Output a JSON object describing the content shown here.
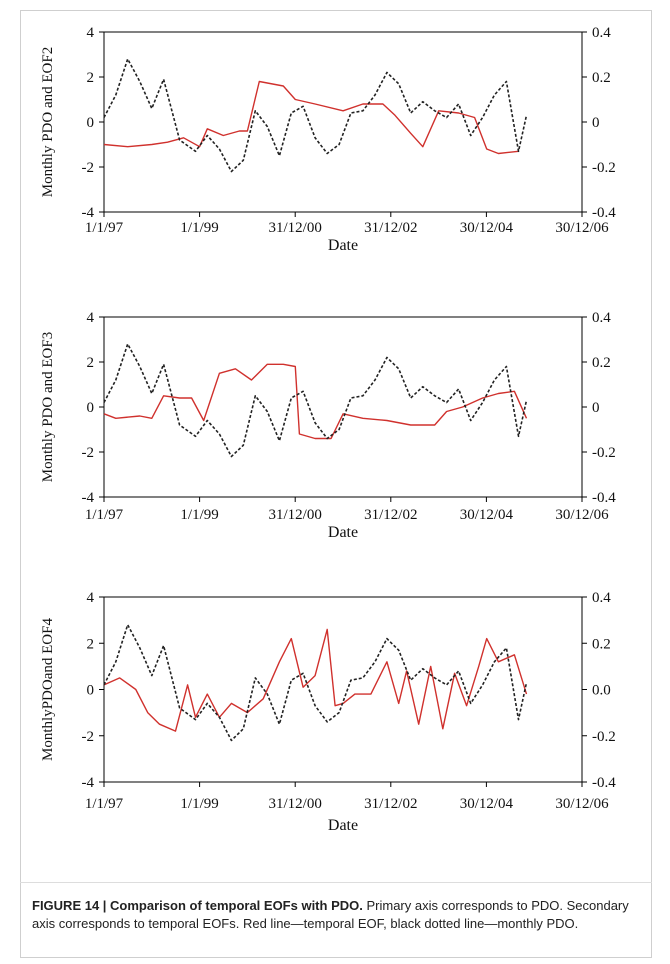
{
  "figure": {
    "caption_title": "FIGURE 14 | Comparison of temporal EOFs with PDO.",
    "caption_text": "Primary axis corresponds to PDO. Secondary axis corresponds to temporal EOFs. Red line—temporal EOF, black dotted line—monthly PDO.",
    "colors": {
      "eof": "#d0312d",
      "pdo": "#222222",
      "axis": "#000000"
    }
  },
  "chart_data": [
    {
      "type": "line",
      "ylabel": "Monthly PDO and EOF2",
      "xlabel": "Date",
      "xlim": [
        "1997-01-01",
        "2006-12-30"
      ],
      "xticks": [
        "1/1/97",
        "1/1/99",
        "31/12/00",
        "31/12/02",
        "30/12/04",
        "30/12/06"
      ],
      "ylim_left": [
        -4,
        4
      ],
      "yticks_left": [
        "4",
        "2",
        "0",
        "-2",
        "-4"
      ],
      "ylim_right": [
        -0.4,
        0.4
      ],
      "yticks_right": [
        "0.4",
        "0.2",
        "0",
        "-0.2",
        "-0.4"
      ],
      "series": [
        {
          "axis": "right",
          "x": [
            "1997-01-01",
            "1997-07-01",
            "1998-01-01",
            "1998-05-01",
            "1998-09-01",
            "1999-01-01",
            "1999-03-01",
            "1999-07-01",
            "1999-11-01",
            "2000-01-01",
            "2000-04-01",
            "2000-10-01",
            "2001-01-01",
            "2001-06-01",
            "2002-01-01",
            "2002-06-01",
            "2002-11-01",
            "2003-02-01",
            "2003-06-01",
            "2003-09-01",
            "2004-01-01",
            "2004-06-01",
            "2004-10-01",
            "2005-01-01",
            "2005-04-01",
            "2005-09-01"
          ],
          "y": [
            -0.1,
            -0.11,
            -0.1,
            -0.09,
            -0.07,
            -0.11,
            -0.03,
            -0.06,
            -0.04,
            -0.04,
            0.18,
            0.16,
            0.1,
            0.08,
            0.05,
            0.08,
            0.08,
            0.03,
            -0.05,
            -0.11,
            0.05,
            0.04,
            0.02,
            -0.12,
            -0.14,
            -0.13
          ]
        },
        {
          "axis": "left",
          "x": [
            "1997-01-01",
            "1997-04-01",
            "1997-07-01",
            "1997-10-01",
            "1998-01-01",
            "1998-04-01",
            "1998-08-01",
            "1998-12-01",
            "1999-03-01",
            "1999-06-01",
            "1999-09-01",
            "1999-12-01",
            "2000-03-01",
            "2000-06-01",
            "2000-09-01",
            "2000-12-01",
            "2001-03-01",
            "2001-06-01",
            "2001-09-01",
            "2001-12-01",
            "2002-03-01",
            "2002-06-01",
            "2002-09-01",
            "2002-12-01",
            "2003-03-01",
            "2003-06-01",
            "2003-09-01",
            "2003-12-01",
            "2004-03-01",
            "2004-06-01",
            "2004-09-01",
            "2004-12-01",
            "2005-03-01",
            "2005-06-01",
            "2005-09-01",
            "2005-11-01"
          ],
          "y": [
            0.2,
            1.2,
            2.8,
            1.8,
            0.6,
            1.9,
            -0.8,
            -1.3,
            -0.6,
            -1.2,
            -2.2,
            -1.7,
            0.5,
            -0.2,
            -1.5,
            0.4,
            0.7,
            -0.7,
            -1.4,
            -1.0,
            0.4,
            0.5,
            1.2,
            2.2,
            1.7,
            0.4,
            0.9,
            0.5,
            0.2,
            0.8,
            -0.6,
            0.2,
            1.2,
            1.8,
            -1.3,
            0.3
          ]
        }
      ]
    },
    {
      "type": "line",
      "ylabel": "Monthly PDO and EOF3",
      "xlabel": "Date",
      "xlim": [
        "1997-01-01",
        "2006-12-30"
      ],
      "xticks": [
        "1/1/97",
        "1/1/99",
        "31/12/00",
        "31/12/02",
        "30/12/04",
        "30/12/06"
      ],
      "ylim_left": [
        -4,
        4
      ],
      "yticks_left": [
        "4",
        "2",
        "0",
        "-2",
        "-4"
      ],
      "ylim_right": [
        -0.4,
        0.4
      ],
      "yticks_right": [
        "0.4",
        "0.2",
        "0",
        "-0.2",
        "-0.4"
      ],
      "series": [
        {
          "axis": "right",
          "x": [
            "1997-01-01",
            "1997-04-01",
            "1997-10-01",
            "1998-01-01",
            "1998-04-01",
            "1998-08-01",
            "1998-11-01",
            "1999-02-01",
            "1999-06-01",
            "1999-10-01",
            "2000-02-01",
            "2000-06-01",
            "2000-10-01",
            "2001-01-01",
            "2001-02-01",
            "2001-06-01",
            "2001-10-01",
            "2002-01-01",
            "2002-06-01",
            "2002-12-01",
            "2003-06-01",
            "2003-12-01",
            "2004-03-01",
            "2004-07-01",
            "2004-12-01",
            "2005-04-01",
            "2005-08-01",
            "2005-11-01"
          ],
          "y": [
            -0.03,
            -0.05,
            -0.04,
            -0.05,
            0.05,
            0.04,
            0.04,
            -0.06,
            0.15,
            0.17,
            0.12,
            0.19,
            0.19,
            0.18,
            -0.12,
            -0.14,
            -0.14,
            -0.03,
            -0.05,
            -0.06,
            -0.08,
            -0.08,
            -0.02,
            0.0,
            0.04,
            0.06,
            0.07,
            -0.05
          ]
        },
        {
          "axis": "left",
          "x": [
            "1997-01-01",
            "1997-04-01",
            "1997-07-01",
            "1997-10-01",
            "1998-01-01",
            "1998-04-01",
            "1998-08-01",
            "1998-12-01",
            "1999-03-01",
            "1999-06-01",
            "1999-09-01",
            "1999-12-01",
            "2000-03-01",
            "2000-06-01",
            "2000-09-01",
            "2000-12-01",
            "2001-03-01",
            "2001-06-01",
            "2001-09-01",
            "2001-12-01",
            "2002-03-01",
            "2002-06-01",
            "2002-09-01",
            "2002-12-01",
            "2003-03-01",
            "2003-06-01",
            "2003-09-01",
            "2003-12-01",
            "2004-03-01",
            "2004-06-01",
            "2004-09-01",
            "2004-12-01",
            "2005-03-01",
            "2005-06-01",
            "2005-09-01",
            "2005-11-01"
          ],
          "y": [
            0.2,
            1.2,
            2.8,
            1.8,
            0.6,
            1.9,
            -0.8,
            -1.3,
            -0.6,
            -1.2,
            -2.2,
            -1.7,
            0.5,
            -0.2,
            -1.5,
            0.4,
            0.7,
            -0.7,
            -1.4,
            -1.0,
            0.4,
            0.5,
            1.2,
            2.2,
            1.7,
            0.4,
            0.9,
            0.5,
            0.2,
            0.8,
            -0.6,
            0.2,
            1.2,
            1.8,
            -1.3,
            0.3
          ]
        }
      ]
    },
    {
      "type": "line",
      "ylabel": "MonthlyPDOand EOF4",
      "xlabel": "Date",
      "xlim": [
        "1997-01-01",
        "2006-12-30"
      ],
      "xticks": [
        "1/1/97",
        "1/1/99",
        "31/12/00",
        "31/12/02",
        "30/12/04",
        "30/12/06"
      ],
      "ylim_left": [
        -4,
        4
      ],
      "yticks_left": [
        "4",
        "2",
        "0",
        "-2",
        "-4"
      ],
      "ylim_right": [
        -0.4,
        0.4
      ],
      "yticks_right": [
        "0.4",
        "0.2",
        "0.0",
        "-0.2",
        "-0.4"
      ],
      "series": [
        {
          "axis": "right",
          "x": [
            "1997-01-01",
            "1997-05-01",
            "1997-09-01",
            "1997-12-01",
            "1998-03-01",
            "1998-07-01",
            "1998-10-01",
            "1998-12-01",
            "1999-03-01",
            "1999-06-01",
            "1999-09-01",
            "2000-01-01",
            "2000-05-01",
            "2000-09-01",
            "2000-12-01",
            "2001-03-01",
            "2001-06-01",
            "2001-09-01",
            "2001-11-01",
            "2002-01-01",
            "2002-04-01",
            "2002-08-01",
            "2002-12-01",
            "2003-03-01",
            "2003-05-01",
            "2003-08-01",
            "2003-11-01",
            "2004-02-01",
            "2004-05-01",
            "2004-08-01",
            "2004-11-01",
            "2005-01-01",
            "2005-04-01",
            "2005-08-01",
            "2005-11-01"
          ],
          "y": [
            0.02,
            0.05,
            0.0,
            -0.1,
            -0.15,
            -0.18,
            0.02,
            -0.12,
            -0.02,
            -0.12,
            -0.06,
            -0.1,
            -0.04,
            0.12,
            0.22,
            0.01,
            0.06,
            0.26,
            -0.07,
            -0.06,
            -0.02,
            -0.02,
            0.12,
            -0.06,
            0.08,
            -0.15,
            0.1,
            -0.17,
            0.07,
            -0.07,
            0.1,
            0.22,
            0.12,
            0.15,
            -0.02
          ]
        },
        {
          "axis": "left",
          "x": [
            "1997-01-01",
            "1997-04-01",
            "1997-07-01",
            "1997-10-01",
            "1998-01-01",
            "1998-04-01",
            "1998-08-01",
            "1998-12-01",
            "1999-03-01",
            "1999-06-01",
            "1999-09-01",
            "1999-12-01",
            "2000-03-01",
            "2000-06-01",
            "2000-09-01",
            "2000-12-01",
            "2001-03-01",
            "2001-06-01",
            "2001-09-01",
            "2001-12-01",
            "2002-03-01",
            "2002-06-01",
            "2002-09-01",
            "2002-12-01",
            "2003-03-01",
            "2003-06-01",
            "2003-09-01",
            "2003-12-01",
            "2004-03-01",
            "2004-06-01",
            "2004-09-01",
            "2004-12-01",
            "2005-03-01",
            "2005-06-01",
            "2005-09-01",
            "2005-11-01"
          ],
          "y": [
            0.2,
            1.2,
            2.8,
            1.8,
            0.6,
            1.9,
            -0.8,
            -1.3,
            -0.6,
            -1.2,
            -2.2,
            -1.7,
            0.5,
            -0.2,
            -1.5,
            0.4,
            0.7,
            -0.7,
            -1.4,
            -1.0,
            0.4,
            0.5,
            1.2,
            2.2,
            1.7,
            0.4,
            0.9,
            0.5,
            0.2,
            0.8,
            -0.6,
            0.2,
            1.2,
            1.8,
            -1.3,
            0.3
          ]
        }
      ]
    }
  ]
}
